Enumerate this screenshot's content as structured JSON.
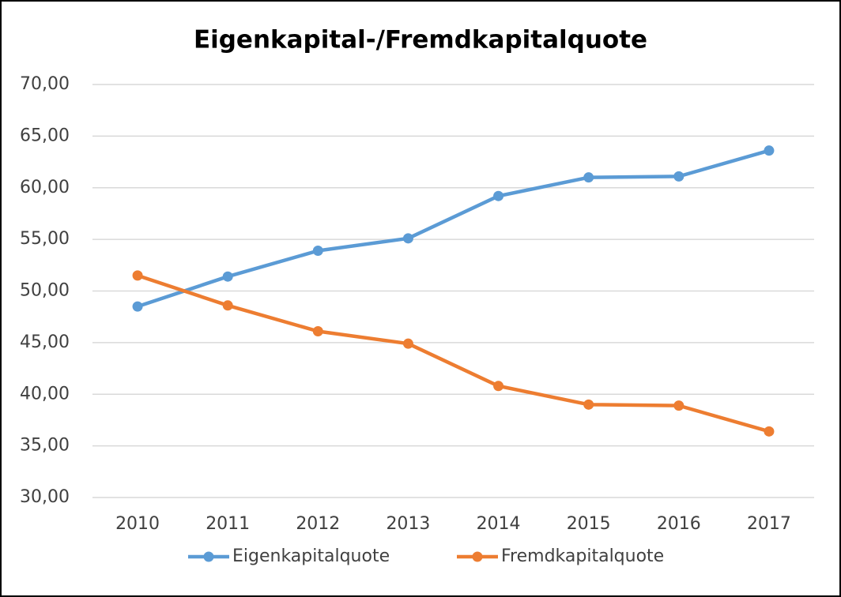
{
  "chart_data": {
    "type": "line",
    "title": "Eigenkapital-/Fremdkapitalquote",
    "categories": [
      "2010",
      "2011",
      "2012",
      "2013",
      "2014",
      "2015",
      "2016",
      "2017"
    ],
    "series": [
      {
        "name": "Eigenkapitalquote",
        "color": "#5b9bd5",
        "values": [
          48.5,
          51.4,
          53.9,
          55.1,
          59.2,
          61.0,
          61.1,
          63.6
        ]
      },
      {
        "name": "Fremdkapitalquote",
        "color": "#ed7d31",
        "values": [
          51.5,
          48.6,
          46.1,
          44.9,
          40.8,
          39.0,
          38.9,
          36.4
        ]
      }
    ],
    "ylim": [
      30,
      70
    ],
    "yticks": [
      {
        "value": 30,
        "label": "30,00"
      },
      {
        "value": 35,
        "label": "35,00"
      },
      {
        "value": 40,
        "label": "40,00"
      },
      {
        "value": 45,
        "label": "45,00"
      },
      {
        "value": 50,
        "label": "50,00"
      },
      {
        "value": 55,
        "label": "55,00"
      },
      {
        "value": 60,
        "label": "60,00"
      },
      {
        "value": 65,
        "label": "65,00"
      },
      {
        "value": 70,
        "label": "70,00"
      }
    ],
    "grid": true,
    "legend": "bottom"
  }
}
